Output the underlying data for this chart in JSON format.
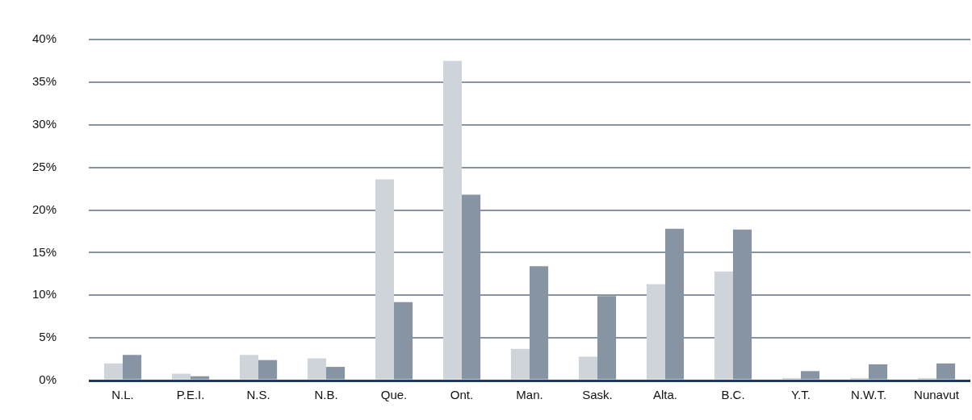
{
  "chart_data": {
    "type": "bar",
    "categories": [
      "N.L.",
      "P.E.I.",
      "N.S.",
      "N.B.",
      "Que.",
      "Ont.",
      "Man.",
      "Sask.",
      "Alta.",
      "B.C.",
      "Y.T.",
      "N.W.T.",
      "Nunavut"
    ],
    "series": [
      {
        "color": "#cfd4db",
        "values": [
          2.0,
          0.8,
          3.0,
          2.6,
          23.6,
          37.5,
          3.7,
          2.8,
          11.3,
          12.8,
          0.3,
          0.3,
          0.3
        ]
      },
      {
        "color": "#8794a3",
        "values": [
          3.0,
          0.5,
          2.4,
          1.6,
          9.2,
          21.8,
          13.4,
          9.9,
          17.8,
          17.7,
          1.1,
          1.9,
          2.0
        ]
      }
    ],
    "ylim": [
      0,
      40
    ],
    "yticks": [
      {
        "value": 0,
        "label": "0%"
      },
      {
        "value": 5,
        "label": "5%"
      },
      {
        "value": 10,
        "label": "10%"
      },
      {
        "value": 15,
        "label": "15%"
      },
      {
        "value": 20,
        "label": "20%"
      },
      {
        "value": 25,
        "label": "25%"
      },
      {
        "value": 30,
        "label": "30%"
      },
      {
        "value": 35,
        "label": "35%"
      },
      {
        "value": 40,
        "label": "40%"
      }
    ],
    "grid": "y",
    "legend": false
  }
}
